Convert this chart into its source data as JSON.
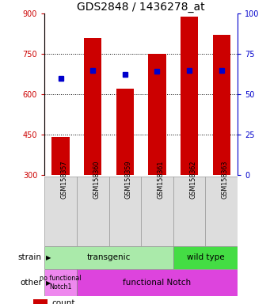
{
  "title": "GDS2848 / 1436278_at",
  "samples": [
    "GSM158357",
    "GSM158360",
    "GSM158359",
    "GSM158361",
    "GSM158362",
    "GSM158363"
  ],
  "counts": [
    440,
    810,
    620,
    750,
    890,
    820
  ],
  "percentiles": [
    660,
    690,
    675,
    685,
    688,
    690
  ],
  "ylim_left": [
    300,
    900
  ],
  "yticks_left": [
    300,
    450,
    600,
    750,
    900
  ],
  "ylim_right": [
    0,
    100
  ],
  "yticks_right": [
    0,
    25,
    50,
    75,
    100
  ],
  "bar_color": "#cc0000",
  "dot_color": "#0000cc",
  "color_transgenic_light": "#aaeaaa",
  "color_wildtype_dark": "#44dd44",
  "color_nofunc": "#ee88ee",
  "color_func": "#dd44dd",
  "axis_color_left": "#cc0000",
  "axis_color_right": "#0000cc",
  "title_fontsize": 10,
  "tick_fontsize": 7,
  "label_fontsize": 7.5
}
